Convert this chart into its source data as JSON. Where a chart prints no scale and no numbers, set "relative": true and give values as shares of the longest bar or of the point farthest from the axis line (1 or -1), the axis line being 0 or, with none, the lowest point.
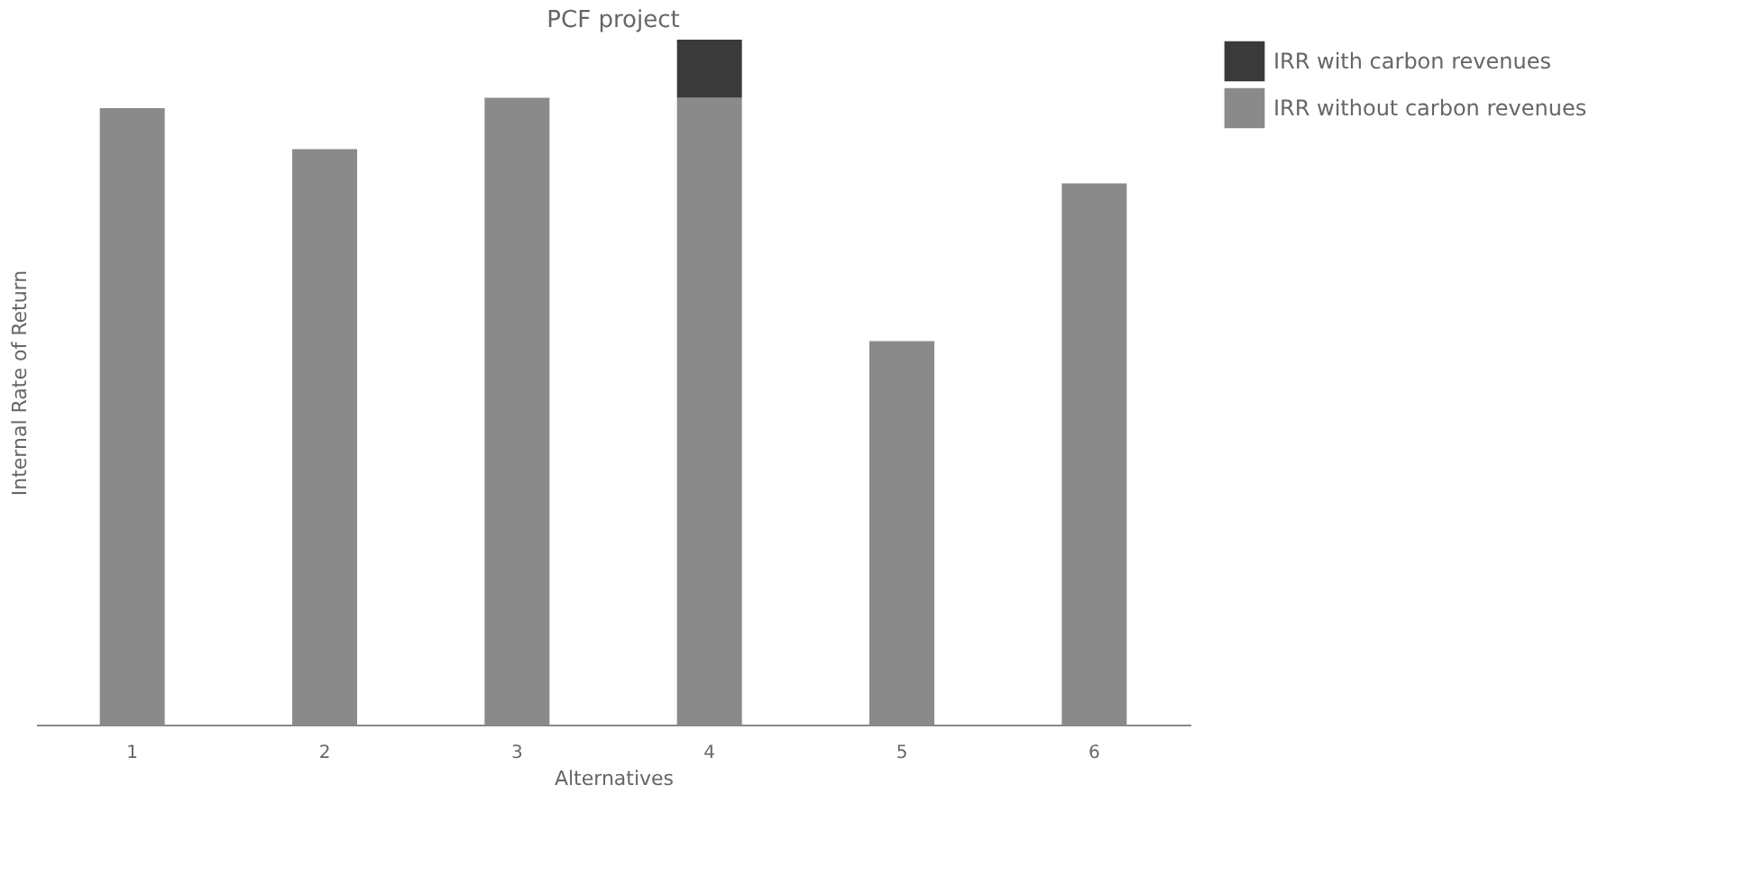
{
  "chart_data": {
    "type": "bar",
    "title": "PCF project",
    "xlabel": "Alternatives",
    "ylabel": "Internal Rate of Return",
    "categories": [
      "1",
      "2",
      "3",
      "4",
      "5",
      "6"
    ],
    "relative": true,
    "stacked": true,
    "legend": "right",
    "grid": false,
    "series": [
      {
        "name": "IRR without carbon revenues",
        "color": "#8a8a8a",
        "values": [
          0.9,
          0.84,
          0.915,
          0.915,
          0.56,
          0.79
        ]
      },
      {
        "name": "IRR with carbon revenues",
        "color": "#3a3a3a",
        "values": [
          0,
          0,
          0,
          0.085,
          0,
          0
        ]
      }
    ]
  }
}
